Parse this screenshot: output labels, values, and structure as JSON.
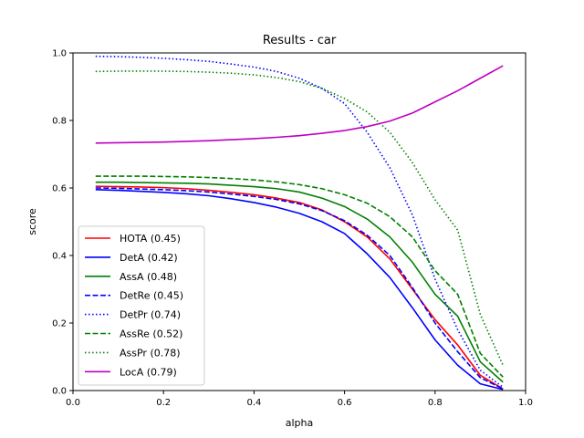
{
  "chart_data": {
    "type": "line",
    "title": "Results - car",
    "xlabel": "alpha",
    "ylabel": "score",
    "xlim": [
      0.0,
      1.0
    ],
    "ylim": [
      0.0,
      1.0
    ],
    "xticks": [
      "0.0",
      "0.2",
      "0.4",
      "0.6",
      "0.8",
      "1.0"
    ],
    "yticks": [
      "0.0",
      "0.2",
      "0.4",
      "0.6",
      "0.8",
      "1.0"
    ],
    "grid": false,
    "legend_position": "lower-left",
    "x": [
      0.05,
      0.1,
      0.15,
      0.2,
      0.25,
      0.3,
      0.35,
      0.4,
      0.45,
      0.5,
      0.55,
      0.6,
      0.65,
      0.7,
      0.75,
      0.8,
      0.85,
      0.9,
      0.95
    ],
    "series": [
      {
        "name": "HOTA (0.45)",
        "color": "#ff0000",
        "dash": "solid",
        "values": [
          0.605,
          0.604,
          0.603,
          0.601,
          0.598,
          0.593,
          0.587,
          0.58,
          0.57,
          0.557,
          0.535,
          0.5,
          0.455,
          0.39,
          0.3,
          0.21,
          0.135,
          0.045,
          0.005
        ]
      },
      {
        "name": "DetA (0.42)",
        "color": "#0000ff",
        "dash": "solid",
        "values": [
          0.595,
          0.593,
          0.59,
          0.587,
          0.583,
          0.577,
          0.568,
          0.557,
          0.543,
          0.525,
          0.5,
          0.465,
          0.405,
          0.335,
          0.245,
          0.15,
          0.075,
          0.02,
          0.003
        ]
      },
      {
        "name": "AssA (0.48)",
        "color": "#008000",
        "dash": "solid",
        "values": [
          0.617,
          0.617,
          0.616,
          0.615,
          0.614,
          0.612,
          0.608,
          0.604,
          0.598,
          0.588,
          0.57,
          0.545,
          0.508,
          0.455,
          0.38,
          0.285,
          0.22,
          0.085,
          0.025
        ]
      },
      {
        "name": "DetRe (0.45)",
        "color": "#0000ff",
        "dash": "dashed",
        "values": [
          0.6,
          0.599,
          0.597,
          0.595,
          0.592,
          0.588,
          0.582,
          0.575,
          0.566,
          0.553,
          0.533,
          0.503,
          0.46,
          0.4,
          0.305,
          0.2,
          0.115,
          0.038,
          0.005
        ]
      },
      {
        "name": "DetPr (0.74)",
        "color": "#0000ff",
        "dash": "dotted",
        "values": [
          0.99,
          0.989,
          0.987,
          0.984,
          0.98,
          0.975,
          0.967,
          0.958,
          0.945,
          0.925,
          0.895,
          0.85,
          0.765,
          0.66,
          0.52,
          0.33,
          0.18,
          0.06,
          0.01
        ]
      },
      {
        "name": "AssRe (0.52)",
        "color": "#008000",
        "dash": "dashed",
        "values": [
          0.635,
          0.635,
          0.635,
          0.634,
          0.633,
          0.631,
          0.628,
          0.624,
          0.618,
          0.61,
          0.598,
          0.58,
          0.555,
          0.515,
          0.455,
          0.355,
          0.285,
          0.11,
          0.04
        ]
      },
      {
        "name": "AssPr (0.78)",
        "color": "#008000",
        "dash": "dotted",
        "values": [
          0.945,
          0.946,
          0.946,
          0.946,
          0.945,
          0.943,
          0.94,
          0.935,
          0.927,
          0.915,
          0.895,
          0.865,
          0.825,
          0.765,
          0.675,
          0.565,
          0.475,
          0.225,
          0.075
        ]
      },
      {
        "name": "LocA (0.79)",
        "color": "#bf00bf",
        "dash": "solid",
        "values": [
          0.733,
          0.734,
          0.735,
          0.736,
          0.738,
          0.74,
          0.743,
          0.746,
          0.75,
          0.755,
          0.762,
          0.77,
          0.782,
          0.798,
          0.822,
          0.855,
          0.888,
          0.925,
          0.962
        ]
      }
    ]
  }
}
